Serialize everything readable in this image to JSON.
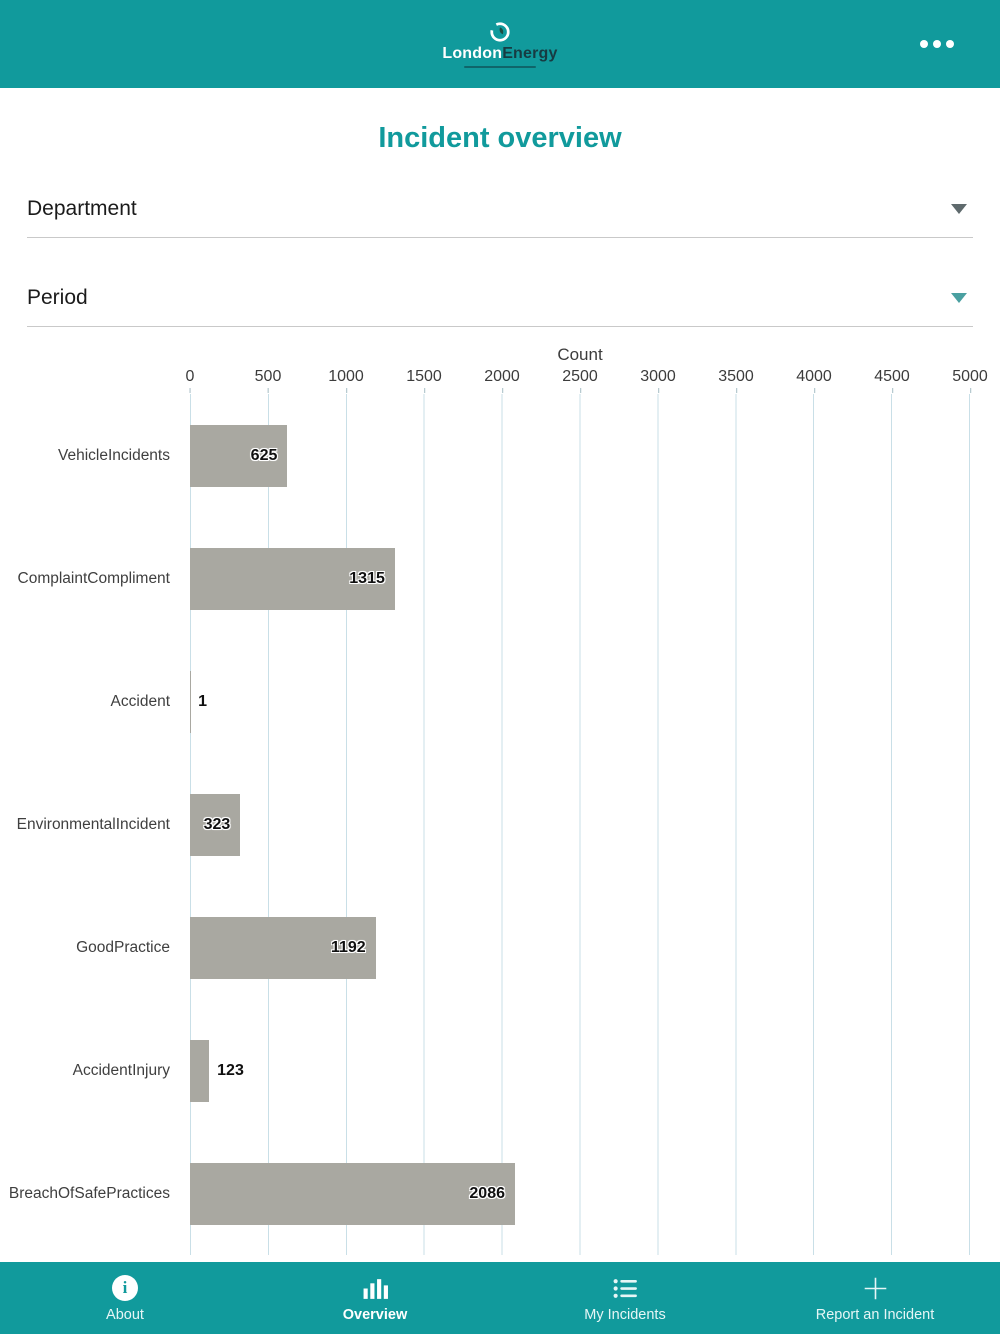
{
  "colors": {
    "accent": "#119a9c",
    "bar": "#a9a8a1",
    "grid": "#c9dfe7"
  },
  "header": {
    "logo_primary": "London",
    "logo_secondary": "Energy"
  },
  "title": "Incident overview",
  "filters": [
    {
      "id": "department",
      "label": "Department",
      "chevron_color": "#5f6a6d"
    },
    {
      "id": "period",
      "label": "Period",
      "chevron_color": "#4aa0a1"
    }
  ],
  "chart_data": {
    "type": "bar",
    "orientation": "horizontal",
    "xlabel": "Count",
    "categories": [
      "VehicleIncidents",
      "ComplaintCompliment",
      "Accident",
      "EnvironmentalIncident",
      "GoodPractice",
      "AccidentInjury",
      "BreachOfSafePractices"
    ],
    "values": [
      625,
      1315,
      1,
      323,
      1192,
      123,
      2086
    ],
    "xlim": [
      0,
      5000
    ],
    "xticks": [
      0,
      500,
      1000,
      1500,
      2000,
      2500,
      3000,
      3500,
      4000,
      4500,
      5000
    ],
    "grid": true,
    "value_labels": true,
    "legend": false
  },
  "bottom_nav": {
    "items": [
      {
        "id": "about",
        "label": "About",
        "icon": "info-icon",
        "active": false
      },
      {
        "id": "overview",
        "label": "Overview",
        "icon": "bar-chart-icon",
        "active": true
      },
      {
        "id": "my-incidents",
        "label": "My Incidents",
        "icon": "list-icon",
        "active": false
      },
      {
        "id": "report-an-incident",
        "label": "Report an Incident",
        "icon": "plus-icon",
        "active": false
      }
    ]
  }
}
